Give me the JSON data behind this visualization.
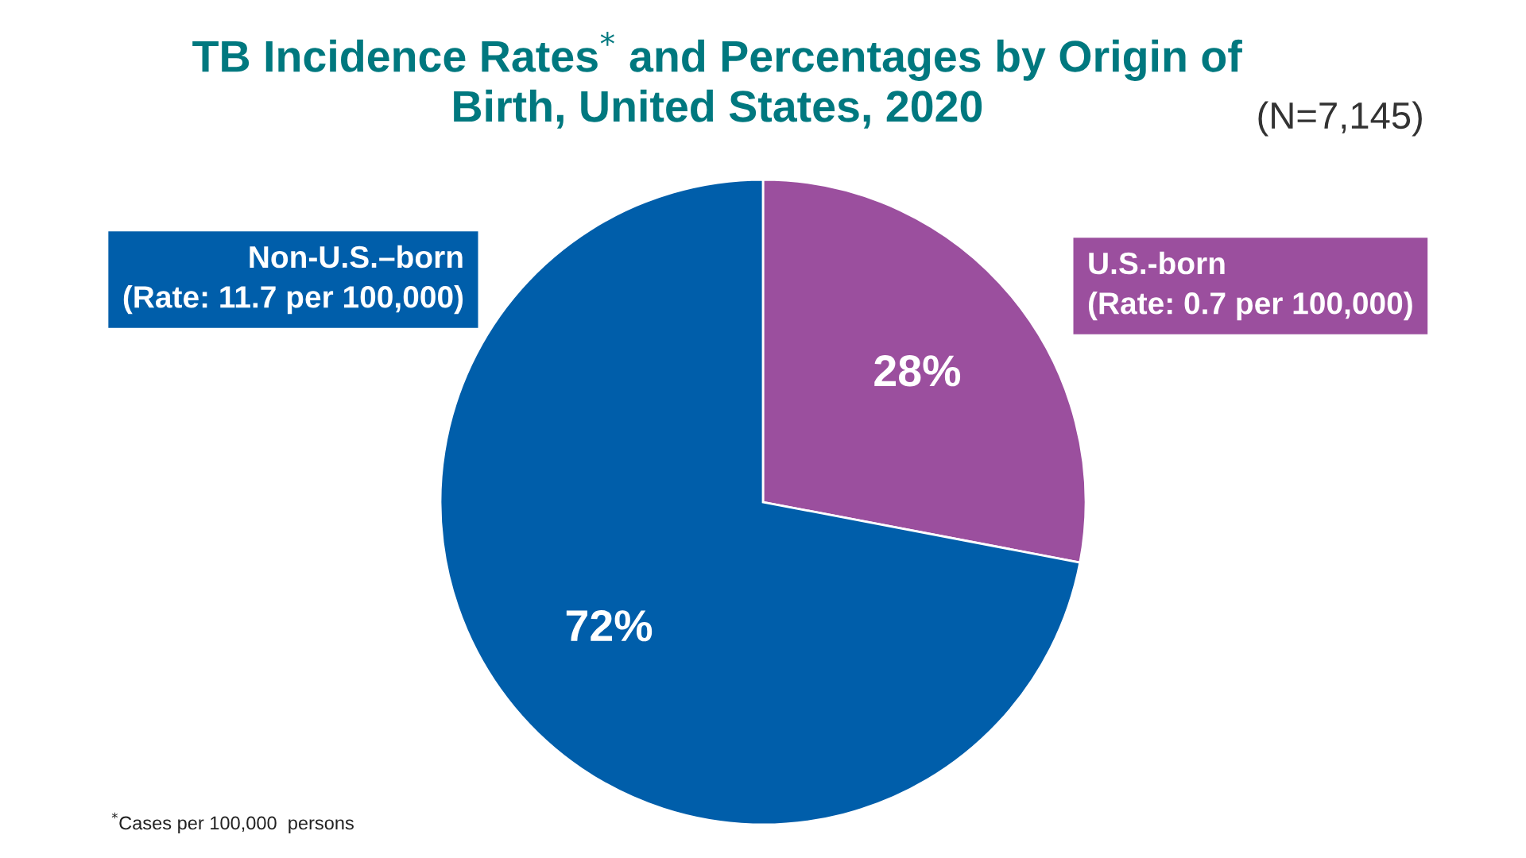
{
  "chart_data": {
    "type": "pie",
    "title": "TB Incidence Rates$^{*}$ and Percentages by Origin of\nBirth, United States, 2020",
    "subtitle": "(N=7,145)",
    "categories": [
      "U.S.-born\n(Rate: 0.7 per 100,000)",
      "Non-U.S.–born\n(Rate: 11.7 per 100,000)"
    ],
    "values": [
      28,
      72
    ],
    "colors": [
      "#9b4f9e",
      "#005eaa"
    ],
    "value_labels": [
      "28%",
      "72%"
    ],
    "annotations": [
      "$^{*}$Cases per 100,000  persons"
    ]
  }
}
